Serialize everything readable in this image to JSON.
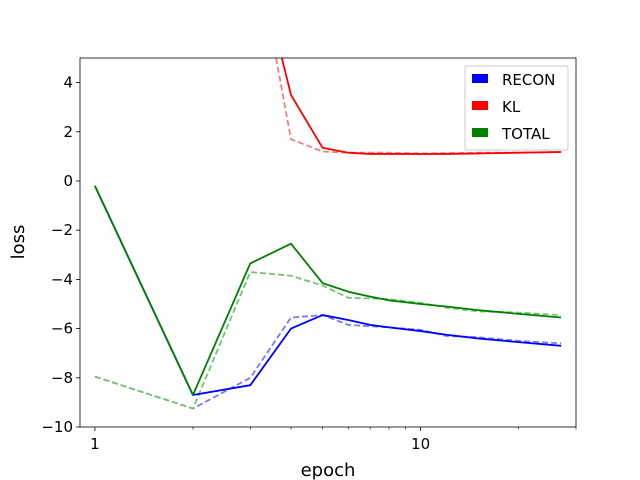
{
  "chart_data": {
    "type": "line",
    "xlabel": "epoch",
    "ylabel": "loss",
    "xscale": "log",
    "xlim": [
      0.9,
      30
    ],
    "ylim": [
      -10,
      5
    ],
    "x_ticks": [
      1,
      10
    ],
    "x_tick_labels": [
      "1",
      "10"
    ],
    "y_ticks": [
      -10,
      -8,
      -6,
      -4,
      -2,
      0,
      2,
      4
    ],
    "y_tick_labels": [
      "−10",
      "−8",
      "−6",
      "−4",
      "−2",
      "0",
      "2",
      "4"
    ],
    "grid": false,
    "legend_position": "top-right",
    "legend": [
      {
        "label": "RECON",
        "color": "#0000ff"
      },
      {
        "label": "KL",
        "color": "#ff0000"
      },
      {
        "label": "TOTAL",
        "color": "#008000"
      }
    ],
    "series": [
      {
        "name": "RECON",
        "style": "solid",
        "color": "#0000ff",
        "x": [
          1,
          2,
          3,
          4,
          5,
          6,
          7,
          8,
          10,
          12,
          15,
          20,
          27
        ],
        "y": [
          -0.2,
          -8.7,
          -8.3,
          -6.0,
          -5.45,
          -5.65,
          -5.85,
          -5.95,
          -6.1,
          -6.25,
          -6.4,
          -6.55,
          -6.7
        ]
      },
      {
        "name": "KL",
        "style": "solid",
        "color": "#ff0000",
        "x": [
          3.75,
          4,
          5,
          6,
          7,
          8,
          10,
          12,
          15,
          20,
          27
        ],
        "y": [
          5.0,
          3.5,
          1.35,
          1.15,
          1.1,
          1.1,
          1.1,
          1.1,
          1.12,
          1.15,
          1.18
        ]
      },
      {
        "name": "TOTAL",
        "style": "solid",
        "color": "#008000",
        "x": [
          1,
          2,
          3,
          4,
          5,
          6,
          7,
          8,
          10,
          12,
          15,
          20,
          27
        ],
        "y": [
          -0.2,
          -8.7,
          -3.35,
          -2.55,
          -4.15,
          -4.5,
          -4.7,
          -4.85,
          -5.0,
          -5.1,
          -5.25,
          -5.4,
          -5.55
        ]
      },
      {
        "style": "dashed",
        "color": "#7b7bf0",
        "x": [
          1,
          2,
          3,
          4,
          5,
          6,
          8,
          10,
          12,
          15,
          20,
          27
        ],
        "y": [
          -7.95,
          -9.25,
          -8.0,
          -5.55,
          -5.45,
          -5.85,
          -5.95,
          -6.05,
          -6.3,
          -6.35,
          -6.5,
          -6.6
        ]
      },
      {
        "style": "dashed",
        "color": "#f08080",
        "x": [
          3.6,
          4,
          5,
          6,
          8,
          10,
          15,
          20,
          27
        ],
        "y": [
          5.0,
          1.7,
          1.2,
          1.15,
          1.15,
          1.12,
          1.15,
          1.15,
          1.18
        ]
      },
      {
        "style": "dashed",
        "color": "#74c474",
        "x": [
          1,
          2,
          3,
          4,
          5,
          6,
          8,
          10,
          12,
          15,
          20,
          27
        ],
        "y": [
          -7.95,
          -9.25,
          -3.7,
          -3.85,
          -4.25,
          -4.75,
          -4.8,
          -4.95,
          -5.15,
          -5.3,
          -5.35,
          -5.45
        ]
      }
    ]
  }
}
